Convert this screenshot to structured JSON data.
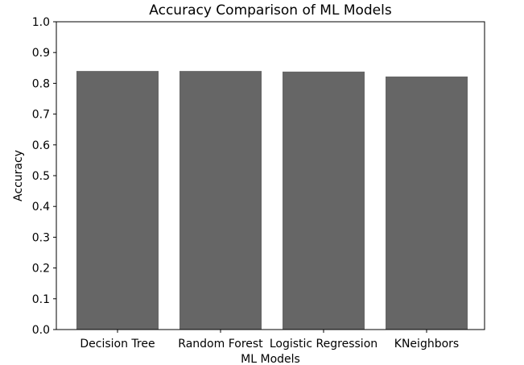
{
  "chart_data": {
    "type": "bar",
    "title": "Accuracy Comparison of ML Models",
    "xlabel": "ML Models",
    "ylabel": "Accuracy",
    "categories": [
      "Decision Tree",
      "Random Forest",
      "Logistic Regression",
      "KNeighbors"
    ],
    "values": [
      0.84,
      0.84,
      0.838,
      0.822
    ],
    "ylim": [
      0,
      1.0
    ],
    "yticks": [
      "0.0",
      "0.1",
      "0.2",
      "0.3",
      "0.4",
      "0.5",
      "0.6",
      "0.7",
      "0.8",
      "0.9",
      "1.0"
    ],
    "grid": false,
    "bar_color": "#666666"
  }
}
